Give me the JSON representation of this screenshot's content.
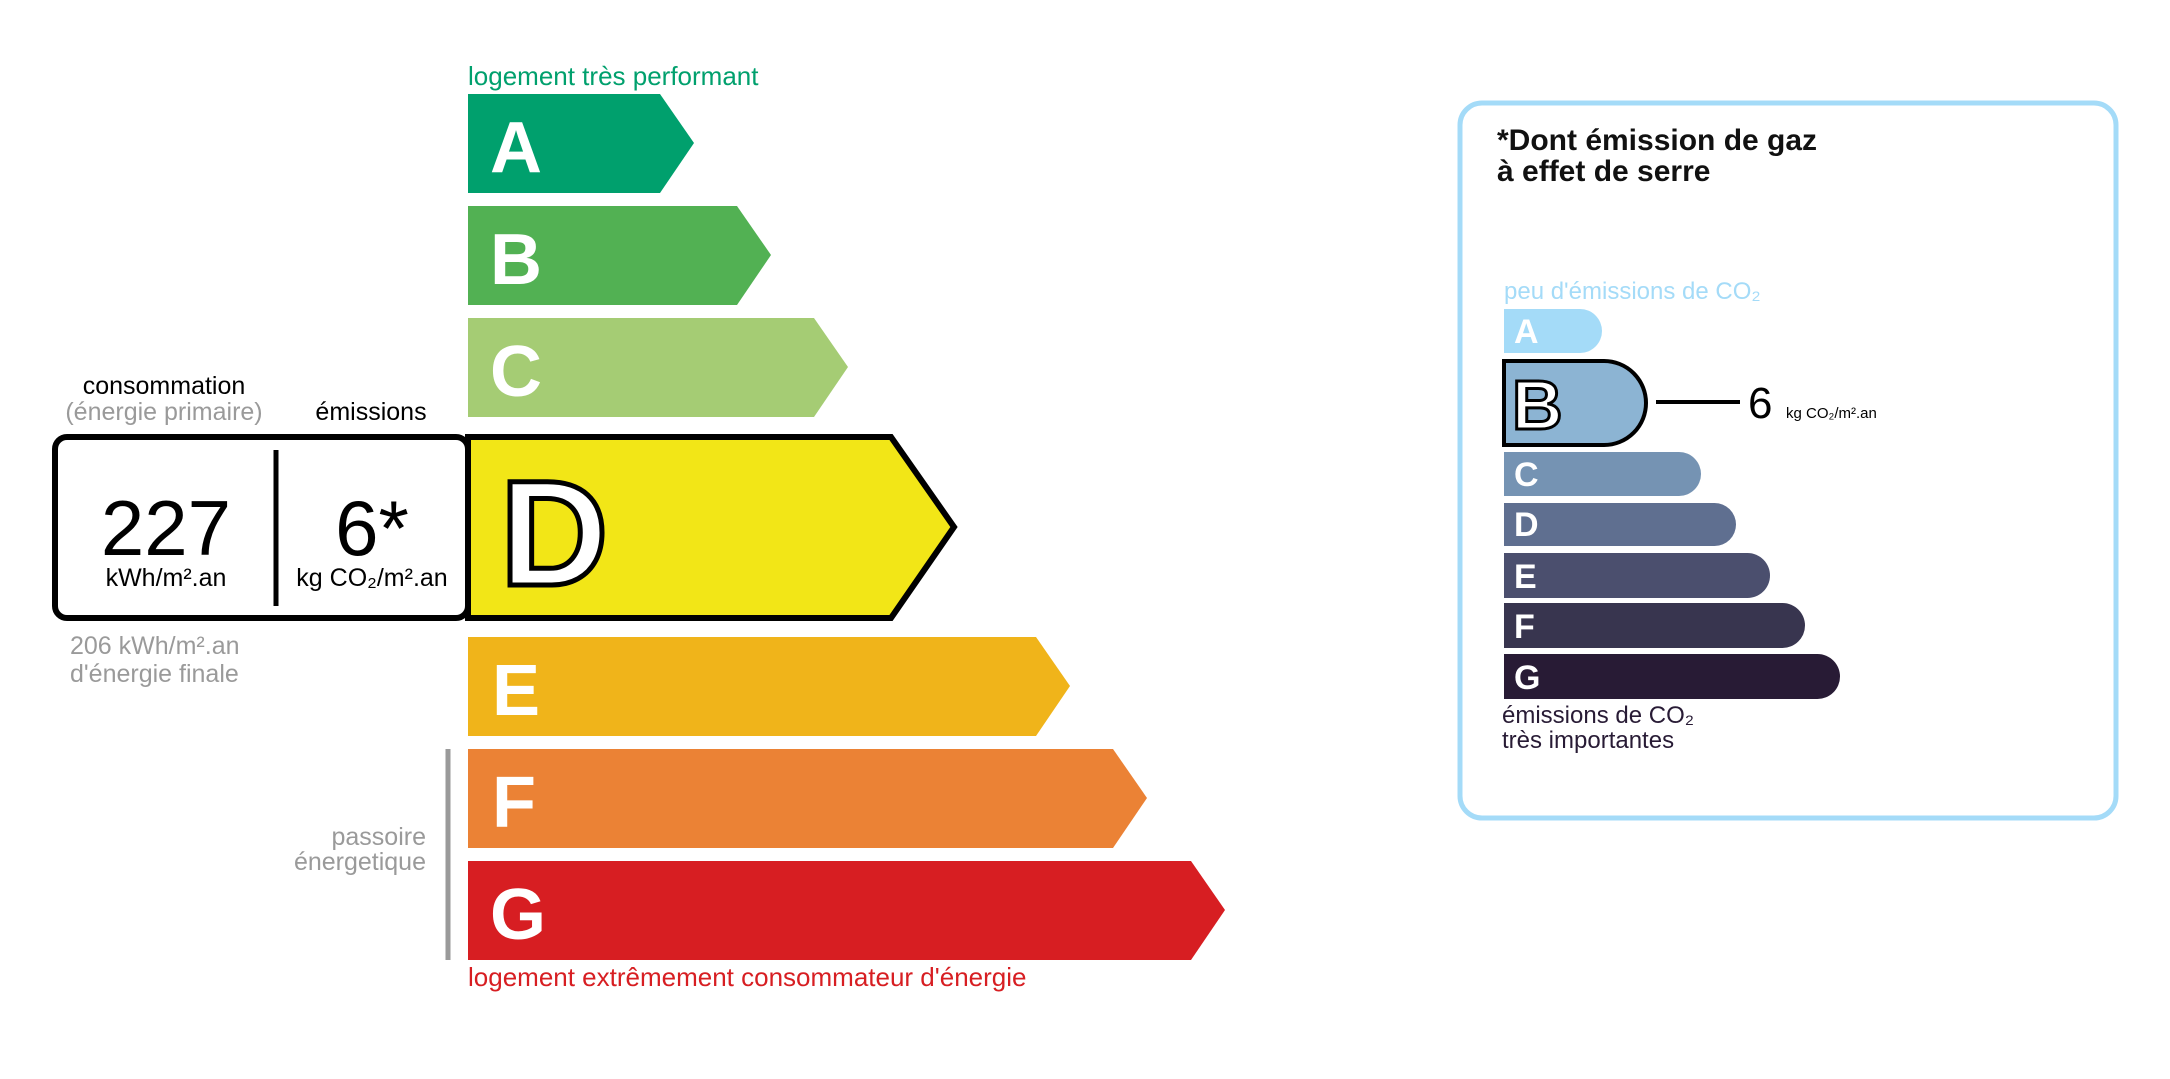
{
  "energy_scale": {
    "top_label": "logement très performant",
    "bottom_label": "logement extrêmement consommateur d'énergie",
    "passoire_label": [
      "passoire",
      "énergetique"
    ],
    "classes": [
      {
        "letter": "A",
        "color": "#00a06d"
      },
      {
        "letter": "B",
        "color": "#52b153"
      },
      {
        "letter": "C",
        "color": "#a5cc74"
      },
      {
        "letter": "D",
        "color": "#f2e617"
      },
      {
        "letter": "E",
        "color": "#f0b41a"
      },
      {
        "letter": "F",
        "color": "#eb8235"
      },
      {
        "letter": "G",
        "color": "#d71e22"
      }
    ],
    "current_class": "D",
    "consumption_label": "consommation",
    "consumption_sublabel": "(énergie primaire)",
    "emissions_label": "émissions",
    "consumption_value": "227",
    "consumption_unit": "kWh/m².an",
    "emissions_value": "6*",
    "emissions_unit": "kg CO₂/m².an",
    "final_energy": "206 kWh/m².an",
    "final_energy_label": "d'énergie finale"
  },
  "ghg_panel": {
    "title_line1": "*Dont émission de gaz",
    "title_line2": "à effet de serre",
    "top_label": "peu d'émissions de CO₂",
    "bottom_label_line1": "émissions de CO₂",
    "bottom_label_line2": "très importantes",
    "border_color": "#a4dbf8",
    "classes": [
      {
        "letter": "A",
        "color": "#a4dbf8"
      },
      {
        "letter": "B",
        "color": "#8cb4d3"
      },
      {
        "letter": "C",
        "color": "#7593b3"
      },
      {
        "letter": "D",
        "color": "#5f6f90"
      },
      {
        "letter": "E",
        "color": "#4b4f6e"
      },
      {
        "letter": "F",
        "color": "#38354f"
      },
      {
        "letter": "G",
        "color": "#281b35"
      }
    ],
    "current_class": "B",
    "value": "6",
    "unit": "kg CO₂/m².an"
  }
}
